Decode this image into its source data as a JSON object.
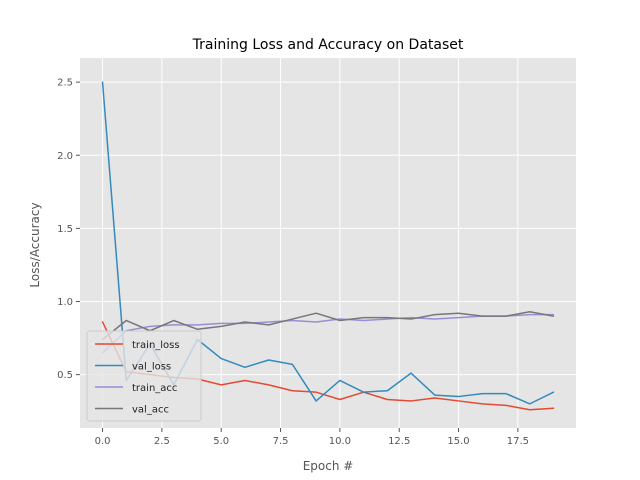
{
  "chart_data": {
    "type": "line",
    "title": "Training Loss and Accuracy on Dataset",
    "xlabel": "Epoch #",
    "ylabel": "Loss/Accuracy",
    "xlim": [
      -0.95,
      19.95
    ],
    "ylim": [
      0.135,
      2.665
    ],
    "xticks": [
      0,
      2.5,
      5,
      7.5,
      10,
      12.5,
      15,
      17.5
    ],
    "xtick_labels": [
      "0.0",
      "2.5",
      "5.0",
      "7.5",
      "10.0",
      "12.5",
      "15.0",
      "17.5"
    ],
    "yticks": [
      0.5,
      1.0,
      1.5,
      2.0,
      2.5
    ],
    "ytick_labels": [
      "0.5",
      "1.0",
      "1.5",
      "2.0",
      "2.5"
    ],
    "grid": true,
    "legend_position": "lower-left",
    "x": [
      0,
      1,
      2,
      3,
      4,
      5,
      6,
      7,
      8,
      9,
      10,
      11,
      12,
      13,
      14,
      15,
      16,
      17,
      18,
      19
    ],
    "series": [
      {
        "name": "train_loss",
        "color": "#E24A33",
        "values": [
          0.86,
          0.52,
          0.5,
          0.48,
          0.47,
          0.43,
          0.46,
          0.43,
          0.39,
          0.38,
          0.33,
          0.38,
          0.33,
          0.32,
          0.34,
          0.32,
          0.3,
          0.29,
          0.26,
          0.27
        ]
      },
      {
        "name": "val_loss",
        "color": "#348ABD",
        "values": [
          2.5,
          0.46,
          0.71,
          0.43,
          0.74,
          0.61,
          0.55,
          0.6,
          0.57,
          0.32,
          0.46,
          0.38,
          0.39,
          0.51,
          0.36,
          0.35,
          0.37,
          0.37,
          0.3,
          0.38
        ]
      },
      {
        "name": "train_acc",
        "color": "#988ED5",
        "values": [
          0.65,
          0.8,
          0.83,
          0.84,
          0.84,
          0.85,
          0.85,
          0.86,
          0.87,
          0.86,
          0.88,
          0.87,
          0.88,
          0.89,
          0.88,
          0.89,
          0.9,
          0.9,
          0.91,
          0.91
        ]
      },
      {
        "name": "val_acc",
        "color": "#777777",
        "values": [
          0.74,
          0.87,
          0.8,
          0.87,
          0.81,
          0.83,
          0.86,
          0.84,
          0.88,
          0.92,
          0.87,
          0.89,
          0.89,
          0.88,
          0.91,
          0.92,
          0.9,
          0.9,
          0.93,
          0.9
        ]
      }
    ]
  }
}
